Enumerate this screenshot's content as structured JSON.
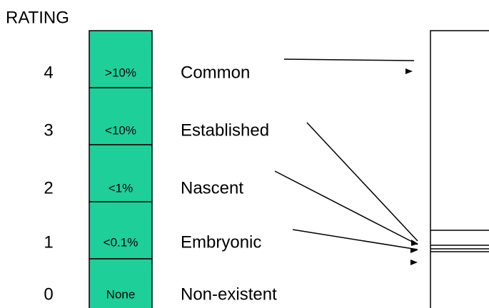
{
  "title": "RATING",
  "rows": [
    {
      "rating": "4",
      "range": ">10%",
      "label": "Common"
    },
    {
      "rating": "3",
      "range": "<10%",
      "label": "Established"
    },
    {
      "rating": "2",
      "range": "<1%",
      "label": "Nascent"
    },
    {
      "rating": "1",
      "range": "<0.1%",
      "label": "Embryonic"
    },
    {
      "rating": "0",
      "range": "None",
      "label": "Non-existent"
    }
  ]
}
